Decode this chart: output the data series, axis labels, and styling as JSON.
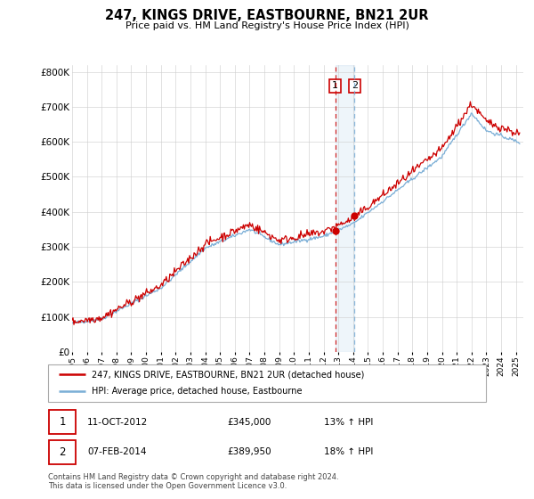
{
  "title": "247, KINGS DRIVE, EASTBOURNE, BN21 2UR",
  "subtitle": "Price paid vs. HM Land Registry's House Price Index (HPI)",
  "ylabel_ticks": [
    "£0",
    "£100K",
    "£200K",
    "£300K",
    "£400K",
    "£500K",
    "£600K",
    "£700K",
    "£800K"
  ],
  "ytick_values": [
    0,
    100000,
    200000,
    300000,
    400000,
    500000,
    600000,
    700000,
    800000
  ],
  "ylim": [
    0,
    820000
  ],
  "xlim_start": 1995.0,
  "xlim_end": 2025.5,
  "red_color": "#cc0000",
  "blue_color": "#7aaed6",
  "marker1_x": 2012.78,
  "marker1_y": 345000,
  "marker2_x": 2014.09,
  "marker2_y": 389950,
  "vline1_x": 2012.78,
  "vline2_x": 2014.09,
  "legend_red_label": "247, KINGS DRIVE, EASTBOURNE, BN21 2UR (detached house)",
  "legend_blue_label": "HPI: Average price, detached house, Eastbourne",
  "footer": "Contains HM Land Registry data © Crown copyright and database right 2024.\nThis data is licensed under the Open Government Licence v3.0.",
  "background_color": "#ffffff",
  "grid_color": "#cccccc"
}
